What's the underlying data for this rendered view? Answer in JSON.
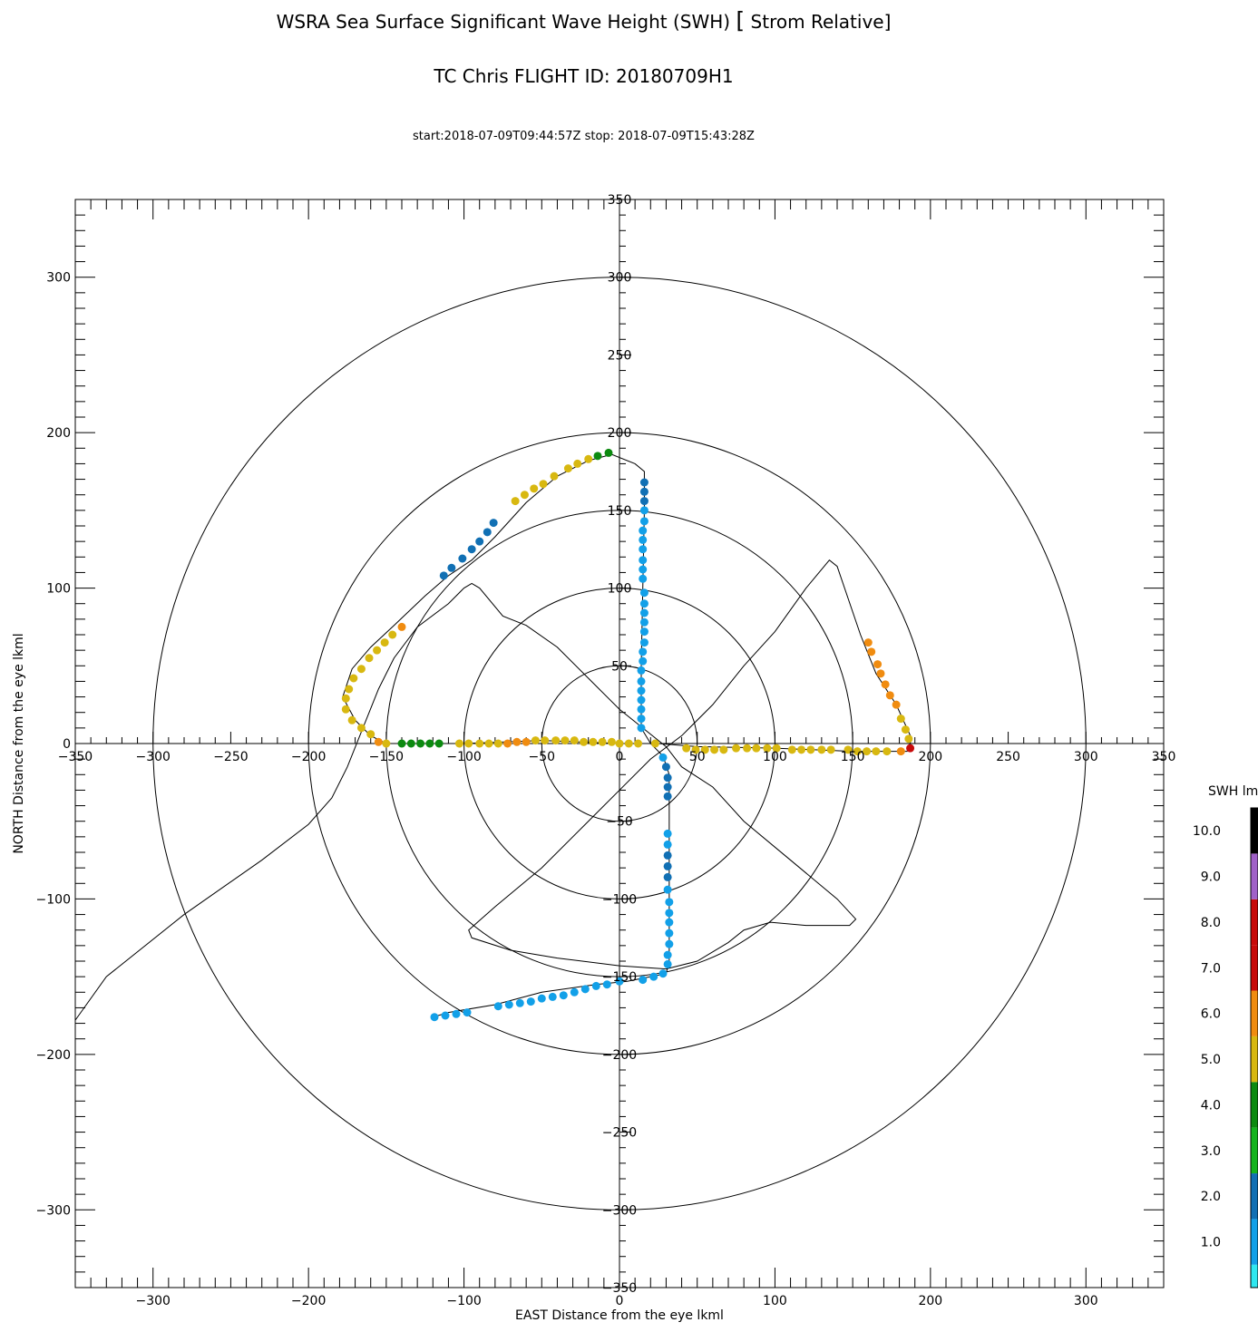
{
  "title": "WSRA Sea Surface Significant Wave Height (SWH)",
  "title_bracket_open": "[",
  "title_suffix": " Strom Relative",
  "title_bracket_close": "]",
  "subtitle": "TC Chris FLIGHT ID: 20180709H1",
  "time_range": "start:2018-07-09T09:44:57Z stop: 2018-07-09T15:43:28Z",
  "chart_data": {
    "type": "scatter",
    "xlabel": "EAST Distance from the eye lkml",
    "ylabel": "NORTH Distance from the eye lkml",
    "xlim": [
      -350,
      350
    ],
    "ylim": [
      -350,
      350
    ],
    "x_ticks": [
      -300,
      -200,
      -100,
      0,
      100,
      200,
      300
    ],
    "y_ticks": [
      -300,
      -200,
      -100,
      0,
      100,
      200,
      300
    ],
    "axis_cross_ticks_x": [
      -350,
      -300,
      -250,
      -200,
      -150,
      -100,
      -50,
      0,
      50,
      100,
      150,
      200,
      250,
      300,
      350
    ],
    "axis_cross_ticks_y": [
      350,
      300,
      250,
      200,
      150,
      100,
      50,
      -50,
      -100,
      -150,
      -200,
      -250,
      -300,
      -350
    ],
    "range_rings": [
      50,
      100,
      150,
      200,
      300
    ],
    "colorbar": {
      "label": "SWH lml",
      "tick_labels": [
        "1.0",
        "2.0",
        "3.0",
        "4.0",
        "5.0",
        "6.0",
        "7.0",
        "8.0",
        "9.0",
        "10.0"
      ],
      "bins": [
        {
          "from": 0,
          "to": 0.5,
          "color": "#30e8f0"
        },
        {
          "from": 0.5,
          "to": 1.5,
          "color": "#12a0e8"
        },
        {
          "from": 1.5,
          "to": 2.5,
          "color": "#1170b4"
        },
        {
          "from": 2.5,
          "to": 3.5,
          "color": "#14b41e"
        },
        {
          "from": 3.5,
          "to": 4.5,
          "color": "#0c8a10"
        },
        {
          "from": 4.5,
          "to": 5.5,
          "color": "#d8b810"
        },
        {
          "from": 5.5,
          "to": 6.5,
          "color": "#f08c10"
        },
        {
          "from": 6.5,
          "to": 7.5,
          "color": "#c80a0a"
        },
        {
          "from": 7.5,
          "to": 8.5,
          "color": "#c80a0a"
        },
        {
          "from": 8.5,
          "to": 9.5,
          "color": "#a060c8"
        },
        {
          "from": 9.5,
          "to": 10.5,
          "color": "#000000"
        }
      ]
    },
    "track": [
      [
        -350,
        -178
      ],
      [
        -330,
        -150
      ],
      [
        -280,
        -110
      ],
      [
        -230,
        -75
      ],
      [
        -200,
        -52
      ],
      [
        -185,
        -35
      ],
      [
        -175,
        -15
      ],
      [
        -165,
        10
      ],
      [
        -155,
        35
      ],
      [
        -145,
        55
      ],
      [
        -130,
        75
      ],
      [
        -110,
        90
      ],
      [
        -100,
        100
      ],
      [
        -95,
        103
      ],
      [
        -90,
        100
      ],
      [
        -75,
        82
      ],
      [
        -60,
        76
      ],
      [
        -40,
        62
      ],
      [
        -20,
        42
      ],
      [
        0,
        22
      ],
      [
        15,
        10
      ],
      [
        30,
        -2
      ],
      [
        40,
        -15
      ],
      [
        60,
        -28
      ],
      [
        80,
        -50
      ],
      [
        110,
        -75
      ],
      [
        140,
        -100
      ],
      [
        152,
        -113
      ],
      [
        148,
        -117
      ],
      [
        120,
        -117
      ],
      [
        97,
        -115
      ],
      [
        80,
        -120
      ],
      [
        70,
        -128
      ],
      [
        50,
        -140
      ],
      [
        30,
        -145
      ],
      [
        0,
        -143
      ],
      [
        -40,
        -138
      ],
      [
        -70,
        -133
      ],
      [
        -95,
        -125
      ],
      [
        -97,
        -120
      ],
      [
        -80,
        -105
      ],
      [
        -50,
        -80
      ],
      [
        -20,
        -50
      ],
      [
        0,
        -30
      ],
      [
        20,
        -10
      ],
      [
        40,
        5
      ],
      [
        60,
        25
      ],
      [
        80,
        50
      ],
      [
        100,
        72
      ],
      [
        120,
        100
      ],
      [
        135,
        118
      ],
      [
        140,
        114
      ],
      [
        155,
        70
      ],
      [
        165,
        45
      ],
      [
        178,
        25
      ],
      [
        188,
        3
      ],
      [
        185,
        -5
      ],
      [
        150,
        -5
      ],
      [
        100,
        -3
      ],
      [
        50,
        -2
      ],
      [
        25,
        0
      ],
      [
        0,
        0
      ],
      [
        -50,
        2
      ],
      [
        -100,
        0
      ],
      [
        -150,
        0
      ],
      [
        -160,
        5
      ],
      [
        -170,
        15
      ],
      [
        -178,
        30
      ],
      [
        -172,
        48
      ],
      [
        -160,
        62
      ],
      [
        -145,
        76
      ],
      [
        -125,
        95
      ],
      [
        -110,
        108
      ],
      [
        -95,
        118
      ],
      [
        -80,
        133
      ],
      [
        -60,
        155
      ],
      [
        -40,
        172
      ],
      [
        -20,
        182
      ],
      [
        -5,
        186
      ],
      [
        10,
        180
      ],
      [
        16,
        175
      ],
      [
        16,
        150
      ],
      [
        15,
        100
      ],
      [
        14,
        50
      ],
      [
        14,
        10
      ],
      [
        20,
        0
      ],
      [
        28,
        -8
      ],
      [
        32,
        -20
      ],
      [
        32,
        -60
      ],
      [
        32,
        -100
      ],
      [
        32,
        -140
      ],
      [
        30,
        -148
      ],
      [
        20,
        -150
      ],
      [
        5,
        -153
      ],
      [
        -15,
        -155
      ],
      [
        -50,
        -160
      ],
      [
        -80,
        -168
      ],
      [
        -110,
        -173
      ],
      [
        -120,
        -176
      ]
    ],
    "points": [
      {
        "x": 16,
        "y": 168,
        "v": 2.0
      },
      {
        "x": 16,
        "y": 162,
        "v": 2.0
      },
      {
        "x": 16,
        "y": 156,
        "v": 2.0
      },
      {
        "x": 16,
        "y": 150,
        "v": 1.0
      },
      {
        "x": 16,
        "y": 143,
        "v": 1.0
      },
      {
        "x": 15,
        "y": 137,
        "v": 1.0
      },
      {
        "x": 15,
        "y": 131,
        "v": 1.0
      },
      {
        "x": 15,
        "y": 125,
        "v": 1.0
      },
      {
        "x": 15,
        "y": 118,
        "v": 1.0
      },
      {
        "x": 15,
        "y": 112,
        "v": 1.0
      },
      {
        "x": 15,
        "y": 106,
        "v": 1.0
      },
      {
        "x": 16,
        "y": 97,
        "v": 1.0
      },
      {
        "x": 16,
        "y": 90,
        "v": 1.0
      },
      {
        "x": 16,
        "y": 84,
        "v": 1.0
      },
      {
        "x": 16,
        "y": 78,
        "v": 1.0
      },
      {
        "x": 16,
        "y": 72,
        "v": 1.0
      },
      {
        "x": 16,
        "y": 65,
        "v": 1.0
      },
      {
        "x": 15,
        "y": 59,
        "v": 1.0
      },
      {
        "x": 15,
        "y": 53,
        "v": 1.0
      },
      {
        "x": 14,
        "y": 47,
        "v": 1.0
      },
      {
        "x": 14,
        "y": 40,
        "v": 1.0
      },
      {
        "x": 14,
        "y": 34,
        "v": 1.0
      },
      {
        "x": 14,
        "y": 28,
        "v": 1.0
      },
      {
        "x": 14,
        "y": 22,
        "v": 1.0
      },
      {
        "x": 14,
        "y": 16,
        "v": 1.0
      },
      {
        "x": 14,
        "y": 10,
        "v": 1.0
      },
      {
        "x": -103,
        "y": 0,
        "v": 5.0
      },
      {
        "x": -97,
        "y": 0,
        "v": 5.0
      },
      {
        "x": -90,
        "y": 0,
        "v": 5.0
      },
      {
        "x": -84,
        "y": 0,
        "v": 5.0
      },
      {
        "x": -78,
        "y": 0,
        "v": 5.0
      },
      {
        "x": -72,
        "y": 0,
        "v": 6.0
      },
      {
        "x": -66,
        "y": 1,
        "v": 6.0
      },
      {
        "x": -60,
        "y": 1,
        "v": 6.0
      },
      {
        "x": -54,
        "y": 2,
        "v": 5.0
      },
      {
        "x": -48,
        "y": 2,
        "v": 5.0
      },
      {
        "x": -41,
        "y": 2,
        "v": 5.0
      },
      {
        "x": -35,
        "y": 2,
        "v": 5.0
      },
      {
        "x": -29,
        "y": 2,
        "v": 5.0
      },
      {
        "x": -23,
        "y": 1,
        "v": 5.0
      },
      {
        "x": -17,
        "y": 1,
        "v": 5.0
      },
      {
        "x": -11,
        "y": 1,
        "v": 5.0
      },
      {
        "x": -5,
        "y": 1,
        "v": 5.0
      },
      {
        "x": 0,
        "y": 0,
        "v": 5.0
      },
      {
        "x": 6,
        "y": 0,
        "v": 5.0
      },
      {
        "x": 12,
        "y": 0,
        "v": 5.0
      },
      {
        "x": 23,
        "y": 0,
        "v": 5.0
      },
      {
        "x": 28,
        "y": -9,
        "v": 1.0
      },
      {
        "x": 30,
        "y": -15,
        "v": 2.0
      },
      {
        "x": 31,
        "y": -22,
        "v": 2.0
      },
      {
        "x": 31,
        "y": -28,
        "v": 2.0
      },
      {
        "x": 31,
        "y": -34,
        "v": 2.0
      },
      {
        "x": 31,
        "y": -58,
        "v": 1.0
      },
      {
        "x": 31,
        "y": -65,
        "v": 1.0
      },
      {
        "x": 31,
        "y": -72,
        "v": 2.0
      },
      {
        "x": 31,
        "y": -79,
        "v": 2.0
      },
      {
        "x": 31,
        "y": -86,
        "v": 2.0
      },
      {
        "x": 31,
        "y": -94,
        "v": 1.0
      },
      {
        "x": 32,
        "y": -102,
        "v": 1.0
      },
      {
        "x": 32,
        "y": -109,
        "v": 1.0
      },
      {
        "x": 32,
        "y": -115,
        "v": 1.0
      },
      {
        "x": 32,
        "y": -122,
        "v": 1.0
      },
      {
        "x": 32,
        "y": -129,
        "v": 1.0
      },
      {
        "x": 31,
        "y": -136,
        "v": 1.0
      },
      {
        "x": 31,
        "y": -142,
        "v": 1.0
      },
      {
        "x": 28,
        "y": -148,
        "v": 1.0
      },
      {
        "x": 22,
        "y": -150,
        "v": 1.0
      },
      {
        "x": 15,
        "y": -152,
        "v": 1.0
      },
      {
        "x": 0,
        "y": -153,
        "v": 1.0
      },
      {
        "x": -8,
        "y": -155,
        "v": 1.0
      },
      {
        "x": -15,
        "y": -156,
        "v": 1.0
      },
      {
        "x": -22,
        "y": -158,
        "v": 1.0
      },
      {
        "x": -29,
        "y": -160,
        "v": 1.0
      },
      {
        "x": -36,
        "y": -162,
        "v": 1.0
      },
      {
        "x": -43,
        "y": -163,
        "v": 1.0
      },
      {
        "x": -50,
        "y": -164,
        "v": 1.0
      },
      {
        "x": -57,
        "y": -166,
        "v": 1.0
      },
      {
        "x": -64,
        "y": -167,
        "v": 1.0
      },
      {
        "x": -71,
        "y": -168,
        "v": 1.0
      },
      {
        "x": -78,
        "y": -169,
        "v": 1.0
      },
      {
        "x": -98,
        "y": -173,
        "v": 1.0
      },
      {
        "x": -105,
        "y": -174,
        "v": 1.0
      },
      {
        "x": -112,
        "y": -175,
        "v": 1.0
      },
      {
        "x": -119,
        "y": -176,
        "v": 1.0
      },
      {
        "x": 43,
        "y": -3,
        "v": 5.0
      },
      {
        "x": 49,
        "y": -4,
        "v": 5.0
      },
      {
        "x": 55,
        "y": -4,
        "v": 5.0
      },
      {
        "x": 61,
        "y": -4,
        "v": 5.0
      },
      {
        "x": 67,
        "y": -4,
        "v": 5.0
      },
      {
        "x": 75,
        "y": -3,
        "v": 5.0
      },
      {
        "x": 82,
        "y": -3,
        "v": 5.0
      },
      {
        "x": 88,
        "y": -3,
        "v": 5.0
      },
      {
        "x": 95,
        "y": -3,
        "v": 5.0
      },
      {
        "x": 101,
        "y": -3,
        "v": 5.0
      },
      {
        "x": 111,
        "y": -4,
        "v": 5.0
      },
      {
        "x": 117,
        "y": -4,
        "v": 5.0
      },
      {
        "x": 123,
        "y": -4,
        "v": 5.0
      },
      {
        "x": 130,
        "y": -4,
        "v": 5.0
      },
      {
        "x": 136,
        "y": -4,
        "v": 5.0
      },
      {
        "x": 147,
        "y": -4,
        "v": 5.0
      },
      {
        "x": 153,
        "y": -5,
        "v": 5.0
      },
      {
        "x": 159,
        "y": -5,
        "v": 5.0
      },
      {
        "x": 165,
        "y": -5,
        "v": 5.0
      },
      {
        "x": 172,
        "y": -5,
        "v": 5.0
      },
      {
        "x": 181,
        "y": -5,
        "v": 6.0
      },
      {
        "x": 187,
        "y": -3,
        "v": 7.0
      },
      {
        "x": 186,
        "y": 3,
        "v": 5.0
      },
      {
        "x": 184,
        "y": 9,
        "v": 5.0
      },
      {
        "x": 181,
        "y": 16,
        "v": 5.0
      },
      {
        "x": 178,
        "y": 25,
        "v": 6.0
      },
      {
        "x": 174,
        "y": 31,
        "v": 6.0
      },
      {
        "x": 171,
        "y": 38,
        "v": 6.0
      },
      {
        "x": 168,
        "y": 45,
        "v": 6.0
      },
      {
        "x": 166,
        "y": 51,
        "v": 6.0
      },
      {
        "x": 162,
        "y": 59,
        "v": 6.0
      },
      {
        "x": 160,
        "y": 65,
        "v": 6.0
      },
      {
        "x": -140,
        "y": 75,
        "v": 5.5
      },
      {
        "x": -146,
        "y": 70,
        "v": 5.0
      },
      {
        "x": -151,
        "y": 65,
        "v": 5.0
      },
      {
        "x": -156,
        "y": 60,
        "v": 5.0
      },
      {
        "x": -161,
        "y": 55,
        "v": 5.0
      },
      {
        "x": -166,
        "y": 48,
        "v": 5.0
      },
      {
        "x": -171,
        "y": 42,
        "v": 5.0
      },
      {
        "x": -174,
        "y": 35,
        "v": 5.0
      },
      {
        "x": -176,
        "y": 29,
        "v": 5.0
      },
      {
        "x": -176,
        "y": 22,
        "v": 5.0
      },
      {
        "x": -172,
        "y": 15,
        "v": 5.0
      },
      {
        "x": -166,
        "y": 10,
        "v": 5.0
      },
      {
        "x": -160,
        "y": 6,
        "v": 5.0
      },
      {
        "x": -155,
        "y": 1,
        "v": 6.0
      },
      {
        "x": -150,
        "y": 0,
        "v": 5.0
      },
      {
        "x": -140,
        "y": 0,
        "v": 4.0
      },
      {
        "x": -134,
        "y": 0,
        "v": 4.0
      },
      {
        "x": -128,
        "y": 0,
        "v": 4.0
      },
      {
        "x": -122,
        "y": 0,
        "v": 4.0
      },
      {
        "x": -116,
        "y": 0,
        "v": 4.0
      },
      {
        "x": -113,
        "y": 108,
        "v": 2.0
      },
      {
        "x": -108,
        "y": 113,
        "v": 2.0
      },
      {
        "x": -101,
        "y": 119,
        "v": 2.0
      },
      {
        "x": -95,
        "y": 125,
        "v": 2.0
      },
      {
        "x": -90,
        "y": 130,
        "v": 2.0
      },
      {
        "x": -85,
        "y": 136,
        "v": 2.0
      },
      {
        "x": -81,
        "y": 142,
        "v": 2.0
      },
      {
        "x": -67,
        "y": 156,
        "v": 5.0
      },
      {
        "x": -61,
        "y": 160,
        "v": 5.0
      },
      {
        "x": -55,
        "y": 164,
        "v": 5.0
      },
      {
        "x": -49,
        "y": 167,
        "v": 5.0
      },
      {
        "x": -42,
        "y": 172,
        "v": 5.0
      },
      {
        "x": -33,
        "y": 177,
        "v": 5.0
      },
      {
        "x": -27,
        "y": 180,
        "v": 5.0
      },
      {
        "x": -20,
        "y": 183,
        "v": 5.0
      },
      {
        "x": -14,
        "y": 185,
        "v": 4.0
      },
      {
        "x": -7,
        "y": 187,
        "v": 4.0
      }
    ]
  }
}
